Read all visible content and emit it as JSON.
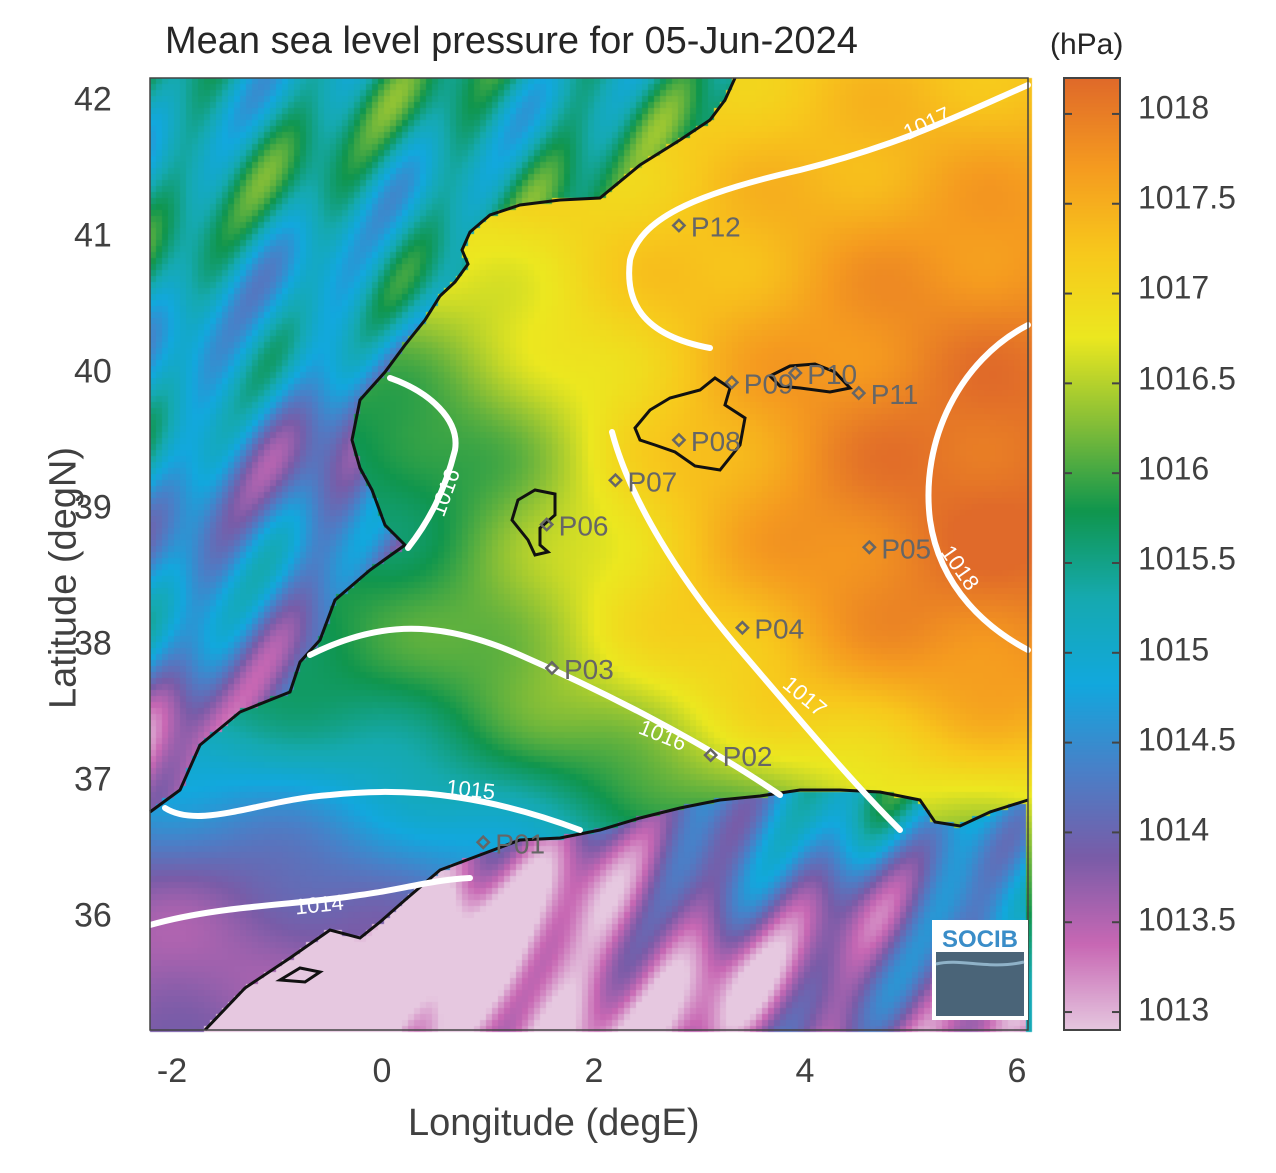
{
  "title": "Mean sea level pressure for 05-Jun-2024",
  "colorbar_unit": "(hPa)",
  "xlabel": "Longitude (degE)",
  "ylabel": "Latitude (degN)",
  "x_ticks": [
    "-2",
    "0",
    "2",
    "4",
    "6"
  ],
  "y_ticks": [
    "42",
    "41",
    "40",
    "39",
    "38",
    "37",
    "36"
  ],
  "colorbar_ticks": [
    "1018",
    "1017.5",
    "1017",
    "1016.5",
    "1016",
    "1015.5",
    "1015",
    "1014.5",
    "1014",
    "1013.5",
    "1013"
  ],
  "logo_text": "SOCIB",
  "chart_data": {
    "type": "heatmap",
    "title": "Mean sea level pressure for 05-Jun-2024",
    "xlabel": "Longitude (degE)",
    "ylabel": "Latitude (degN)",
    "xlim": [
      -2.3,
      6.0
    ],
    "ylim": [
      35.1,
      42.2
    ],
    "color_range_hPa": [
      1012.9,
      1018.2
    ],
    "colormap_stops": [
      "#e6c8e0",
      "#c868b4",
      "#7a5ca8",
      "#4a80c8",
      "#12a8de",
      "#16aab0",
      "#10964e",
      "#84be38",
      "#ece820",
      "#f8c81c",
      "#f59a20",
      "#e06a2a"
    ],
    "contour_color": "#ffffff",
    "contour_levels": [
      "1014",
      "1015",
      "1016",
      "1017",
      "1018"
    ],
    "stations": [
      {
        "name": "P01",
        "lon": 0.85,
        "lat": 36.5
      },
      {
        "name": "P02",
        "lon": 3.0,
        "lat": 37.15
      },
      {
        "name": "P03",
        "lon": 1.5,
        "lat": 37.8
      },
      {
        "name": "P04",
        "lon": 3.3,
        "lat": 38.1
      },
      {
        "name": "P05",
        "lon": 4.5,
        "lat": 38.7
      },
      {
        "name": "P06",
        "lon": 1.45,
        "lat": 38.87
      },
      {
        "name": "P07",
        "lon": 2.1,
        "lat": 39.2
      },
      {
        "name": "P08",
        "lon": 2.7,
        "lat": 39.5
      },
      {
        "name": "P09",
        "lon": 3.2,
        "lat": 39.93
      },
      {
        "name": "P10",
        "lon": 3.8,
        "lat": 40.0
      },
      {
        "name": "P11",
        "lon": 4.4,
        "lat": 39.85
      },
      {
        "name": "P12",
        "lon": 2.7,
        "lat": 41.1
      }
    ]
  }
}
